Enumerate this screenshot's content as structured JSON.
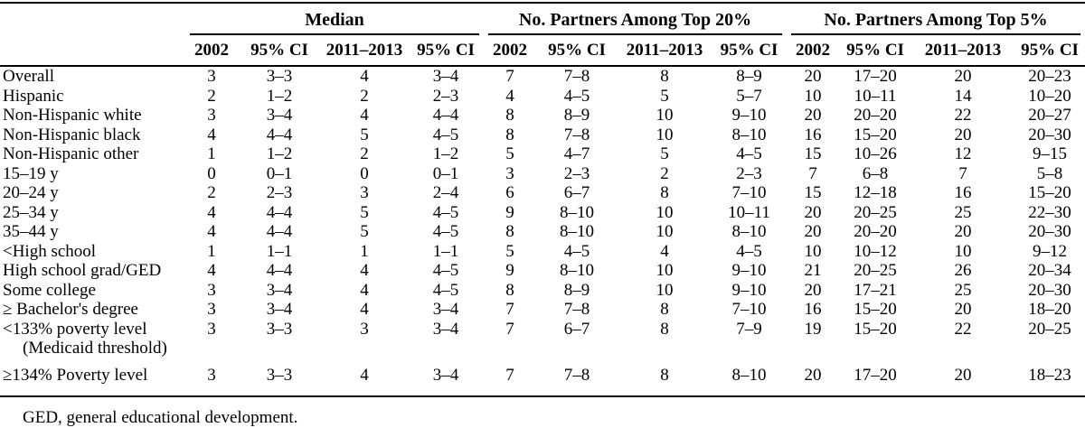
{
  "table": {
    "col_groups": [
      {
        "label": "Median"
      },
      {
        "label": "No. Partners Among Top 20%"
      },
      {
        "label": "No. Partners Among Top 5%"
      }
    ],
    "sub_headers": [
      "2002",
      "95% CI",
      "2011–2013",
      "95% CI"
    ],
    "rows": [
      {
        "label": "Overall",
        "label2": "",
        "values": [
          "3",
          "3–3",
          "4",
          "3–4",
          "7",
          "7–8",
          "8",
          "8–9",
          "20",
          "17–20",
          "20",
          "20–23"
        ]
      },
      {
        "label": "Hispanic",
        "label2": "",
        "values": [
          "2",
          "1–2",
          "2",
          "2–3",
          "4",
          "4–5",
          "5",
          "5–7",
          "10",
          "10–11",
          "14",
          "10–20"
        ]
      },
      {
        "label": "Non-Hispanic white",
        "label2": "",
        "values": [
          "3",
          "3–4",
          "4",
          "4–4",
          "8",
          "8–9",
          "10",
          "9–10",
          "20",
          "20–20",
          "22",
          "20–27"
        ]
      },
      {
        "label": "Non-Hispanic black",
        "label2": "",
        "values": [
          "4",
          "4–4",
          "5",
          "4–5",
          "8",
          "7–8",
          "10",
          "8–10",
          "16",
          "15–20",
          "20",
          "20–30"
        ]
      },
      {
        "label": "Non-Hispanic other",
        "label2": "",
        "values": [
          "1",
          "1–2",
          "2",
          "1–2",
          "5",
          "4–7",
          "5",
          "4–5",
          "15",
          "10–26",
          "12",
          "9–15"
        ]
      },
      {
        "label": "15–19 y",
        "label2": "",
        "values": [
          "0",
          "0–1",
          "0",
          "0–1",
          "3",
          "2–3",
          "2",
          "2–3",
          "7",
          "6–8",
          "7",
          "5–8"
        ]
      },
      {
        "label": "20–24 y",
        "label2": "",
        "values": [
          "2",
          "2–3",
          "3",
          "2–4",
          "6",
          "6–7",
          "8",
          "7–10",
          "15",
          "12–18",
          "16",
          "15–20"
        ]
      },
      {
        "label": "25–34 y",
        "label2": "",
        "values": [
          "4",
          "4–4",
          "5",
          "4–5",
          "9",
          "8–10",
          "10",
          "10–11",
          "20",
          "20–25",
          "25",
          "22–30"
        ]
      },
      {
        "label": "35–44 y",
        "label2": "",
        "values": [
          "4",
          "4–4",
          "5",
          "4–5",
          "8",
          "8–10",
          "10",
          "8–10",
          "20",
          "20–20",
          "20",
          "20–30"
        ]
      },
      {
        "label": "<High school",
        "label2": "",
        "values": [
          "1",
          "1–1",
          "1",
          "1–1",
          "5",
          "4–5",
          "4",
          "4–5",
          "10",
          "10–12",
          "10",
          "9–12"
        ]
      },
      {
        "label": "High school grad/GED",
        "label2": "",
        "values": [
          "4",
          "4–4",
          "4",
          "4–5",
          "9",
          "8–10",
          "10",
          "9–10",
          "21",
          "20–25",
          "26",
          "20–34"
        ]
      },
      {
        "label": "Some college",
        "label2": "",
        "values": [
          "3",
          "3–4",
          "4",
          "4–5",
          "8",
          "8–9",
          "10",
          "9–10",
          "20",
          "17–21",
          "25",
          "20–30"
        ]
      },
      {
        "label": "≥ Bachelor's degree",
        "label2": "",
        "values": [
          "3",
          "3–4",
          "4",
          "3–4",
          "7",
          "7–8",
          "8",
          "7–10",
          "16",
          "15–20",
          "20",
          "18–20"
        ]
      },
      {
        "label": "<133% poverty level",
        "label2": "(Medicaid threshold)",
        "values": [
          "3",
          "3–3",
          "3",
          "3–4",
          "7",
          "6–7",
          "8",
          "7–9",
          "19",
          "15–20",
          "22",
          "20–25"
        ]
      },
      {
        "label": "≥134% Poverty level",
        "label2": "",
        "values": [
          "3",
          "3–3",
          "4",
          "3–4",
          "7",
          "7–8",
          "8",
          "8–10",
          "20",
          "17–20",
          "20",
          "18–23"
        ]
      }
    ],
    "footnote": "GED, general educational development."
  }
}
